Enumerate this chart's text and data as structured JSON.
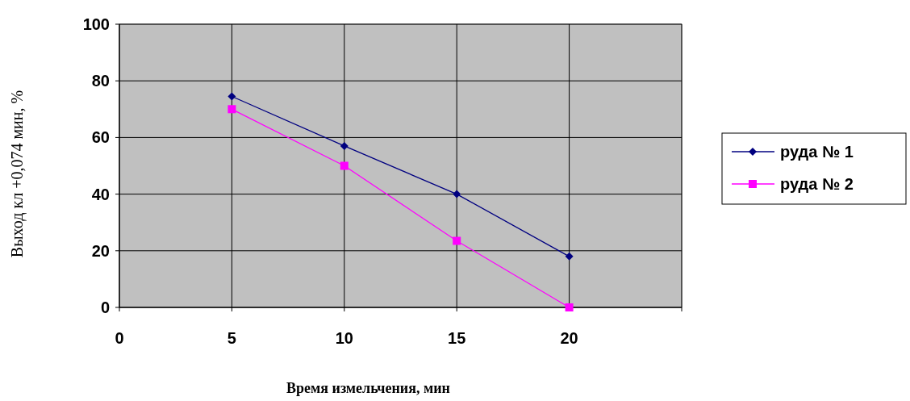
{
  "chart_data": {
    "type": "line",
    "xlabel": "Время измельчения, мин",
    "ylabel": "Выход кл +0,074 мин, %",
    "x": [
      5,
      10,
      15,
      20
    ],
    "series": [
      {
        "name": "руда № 1",
        "color": "#000080",
        "values": [
          74.5,
          57,
          40,
          18
        ],
        "marker": "diamond"
      },
      {
        "name": "руда № 2",
        "color": "#ff00ff",
        "values": [
          70,
          50,
          23.5,
          0
        ],
        "marker": "square"
      }
    ],
    "xlim": [
      0,
      25
    ],
    "xticks": [
      0,
      5,
      10,
      15,
      20,
      {
        "value": 25,
        "label": null
      }
    ],
    "ylim": [
      0,
      100
    ],
    "yticks": [
      0,
      20,
      40,
      60,
      80,
      100
    ],
    "grid": true,
    "legend": "right",
    "line_style": "solid"
  }
}
